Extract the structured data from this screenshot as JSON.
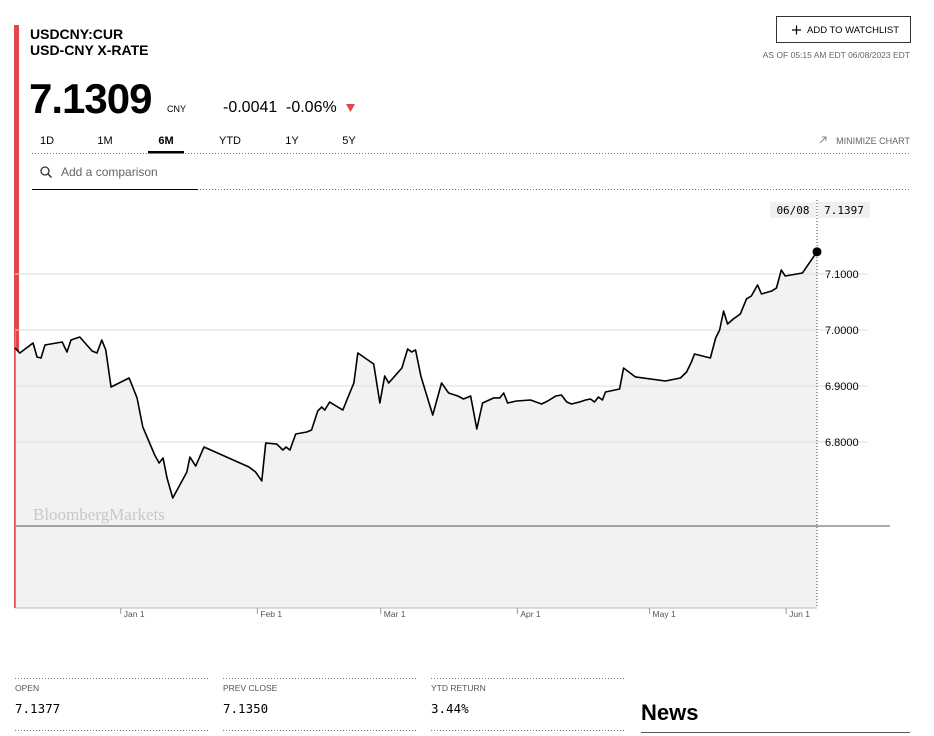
{
  "header": {
    "symbol": "USDCNY:CUR",
    "name": "USD-CNY X-RATE",
    "price": "7.1309",
    "currency": "CNY",
    "change": "-0.0041",
    "change_pct": "-0.06%",
    "watchlist_button": "ADD TO WATCHLIST",
    "as_of": "AS OF 05:15 AM EDT 06/08/2023 EDT"
  },
  "tabs": [
    "1D",
    "1M",
    "6M",
    "YTD",
    "1Y",
    "5Y"
  ],
  "active_tab": 2,
  "minimize": "MINIMIZE CHART",
  "comparison_placeholder": "Add a comparison",
  "chart_data": {
    "type": "line",
    "color": "#000000",
    "fill": "#f2f2f2",
    "x": [
      0,
      1.1,
      4.1,
      5.0,
      5.9,
      6.8,
      10.7,
      11.8,
      12.7,
      14.7,
      17.5,
      18.6,
      19.7,
      20.6,
      21.8,
      25.9,
      27.7,
      29.0,
      31.7,
      32.7,
      33.6,
      34.5,
      35.8,
      37.4,
      39.0,
      39.7,
      41.0,
      42.9,
      53.1,
      54.6,
      56.0,
      56.9,
      59.4,
      60.8,
      61.5,
      62.4,
      63.7,
      66.2,
      67.3,
      68.7,
      69.6,
      70.3,
      71.4,
      74.4,
      75.5,
      76.9,
      77.8,
      81.4,
      82.8,
      83.9,
      84.8,
      87.8,
      89.1,
      90.0,
      90.9,
      92.1,
      93.2,
      94.8,
      96.8,
      98.4,
      100.5,
      101.8,
      103.4,
      104.8,
      106.1,
      108.6,
      110.0,
      110.9,
      111.8,
      113.8,
      117.0,
      119.5,
      120.9,
      122.7,
      124.0,
      125.2,
      126.3,
      128.1,
      129.5,
      130.6,
      131.5,
      132.4,
      133.3,
      134.0,
      137.2,
      138.1,
      140.8,
      147.6,
      151.0,
      152.4,
      153.5,
      154.2,
      157.8,
      159.0,
      159.9,
      160.8,
      161.7,
      163.0,
      164.6,
      166.0,
      167.1,
      168.5,
      169.4,
      171.7,
      172.8,
      173.9,
      174.8,
      178.7,
      182
    ],
    "values": [
      6.9679,
      6.9589,
      6.9768,
      6.9518,
      6.95,
      6.9732,
      6.9786,
      6.9607,
      6.9821,
      6.9875,
      6.9625,
      6.9589,
      6.9821,
      6.9643,
      6.8982,
      6.9143,
      6.8786,
      6.8268,
      6.7768,
      6.7625,
      6.7714,
      6.7357,
      6.7,
      6.7232,
      6.7464,
      6.7732,
      6.7571,
      6.7911,
      6.7554,
      6.7464,
      6.7304,
      6.7982,
      6.7964,
      6.7857,
      6.7911,
      6.7857,
      6.8143,
      6.8179,
      6.8214,
      6.8554,
      6.8625,
      6.8571,
      6.8714,
      6.8571,
      6.8786,
      6.9054,
      6.9589,
      6.9393,
      6.8696,
      6.9179,
      6.9054,
      6.9321,
      6.9661,
      6.9607,
      6.9643,
      6.9179,
      6.8893,
      6.8482,
      6.9054,
      6.8875,
      6.8821,
      6.8768,
      6.8821,
      6.8232,
      6.8696,
      6.8786,
      6.8786,
      6.8875,
      6.8696,
      6.8732,
      6.875,
      6.8679,
      6.8732,
      6.8821,
      6.8839,
      6.8714,
      6.8679,
      6.8714,
      6.875,
      6.8768,
      6.8714,
      6.8804,
      6.875,
      6.8893,
      6.8946,
      6.9321,
      6.9161,
      6.9089,
      6.9143,
      6.925,
      6.9429,
      6.9571,
      6.95,
      6.9857,
      7.0,
      7.0339,
      7.0107,
      7.0196,
      7.0286,
      7.0554,
      7.0607,
      7.0804,
      7.0643,
      7.0696,
      7.075,
      7.1071,
      7.0964,
      7.1018,
      7.1397
    ],
    "xlim": [
      0,
      182
    ],
    "xticks": [
      {
        "value": 24,
        "label": "Jan 1"
      },
      {
        "value": 55,
        "label": "Feb 1"
      },
      {
        "value": 83,
        "label": "Mar 1"
      },
      {
        "value": 114,
        "label": "Apr 1"
      },
      {
        "value": 144,
        "label": "May 1"
      },
      {
        "value": 175,
        "label": "Jun 1"
      }
    ],
    "ylim": [
      6.5036,
      7.2464
    ],
    "yticks": [
      {
        "value": 6.8,
        "label": "6.8000"
      },
      {
        "value": 6.9,
        "label": "6.9000"
      },
      {
        "value": 7.0,
        "label": "7.0000"
      },
      {
        "value": 7.1,
        "label": "7.1000"
      }
    ],
    "grid": true,
    "reference_line": 6.65,
    "watermark": "BloombergMarkets",
    "tooltip": {
      "date": "06/08",
      "value": "7.1397"
    }
  },
  "stats": [
    {
      "label": "OPEN",
      "value": "7.1377"
    },
    {
      "label": "PREV CLOSE",
      "value": "7.1350"
    },
    {
      "label": "YTD RETURN",
      "value": "3.44%"
    }
  ],
  "news_heading": "News"
}
